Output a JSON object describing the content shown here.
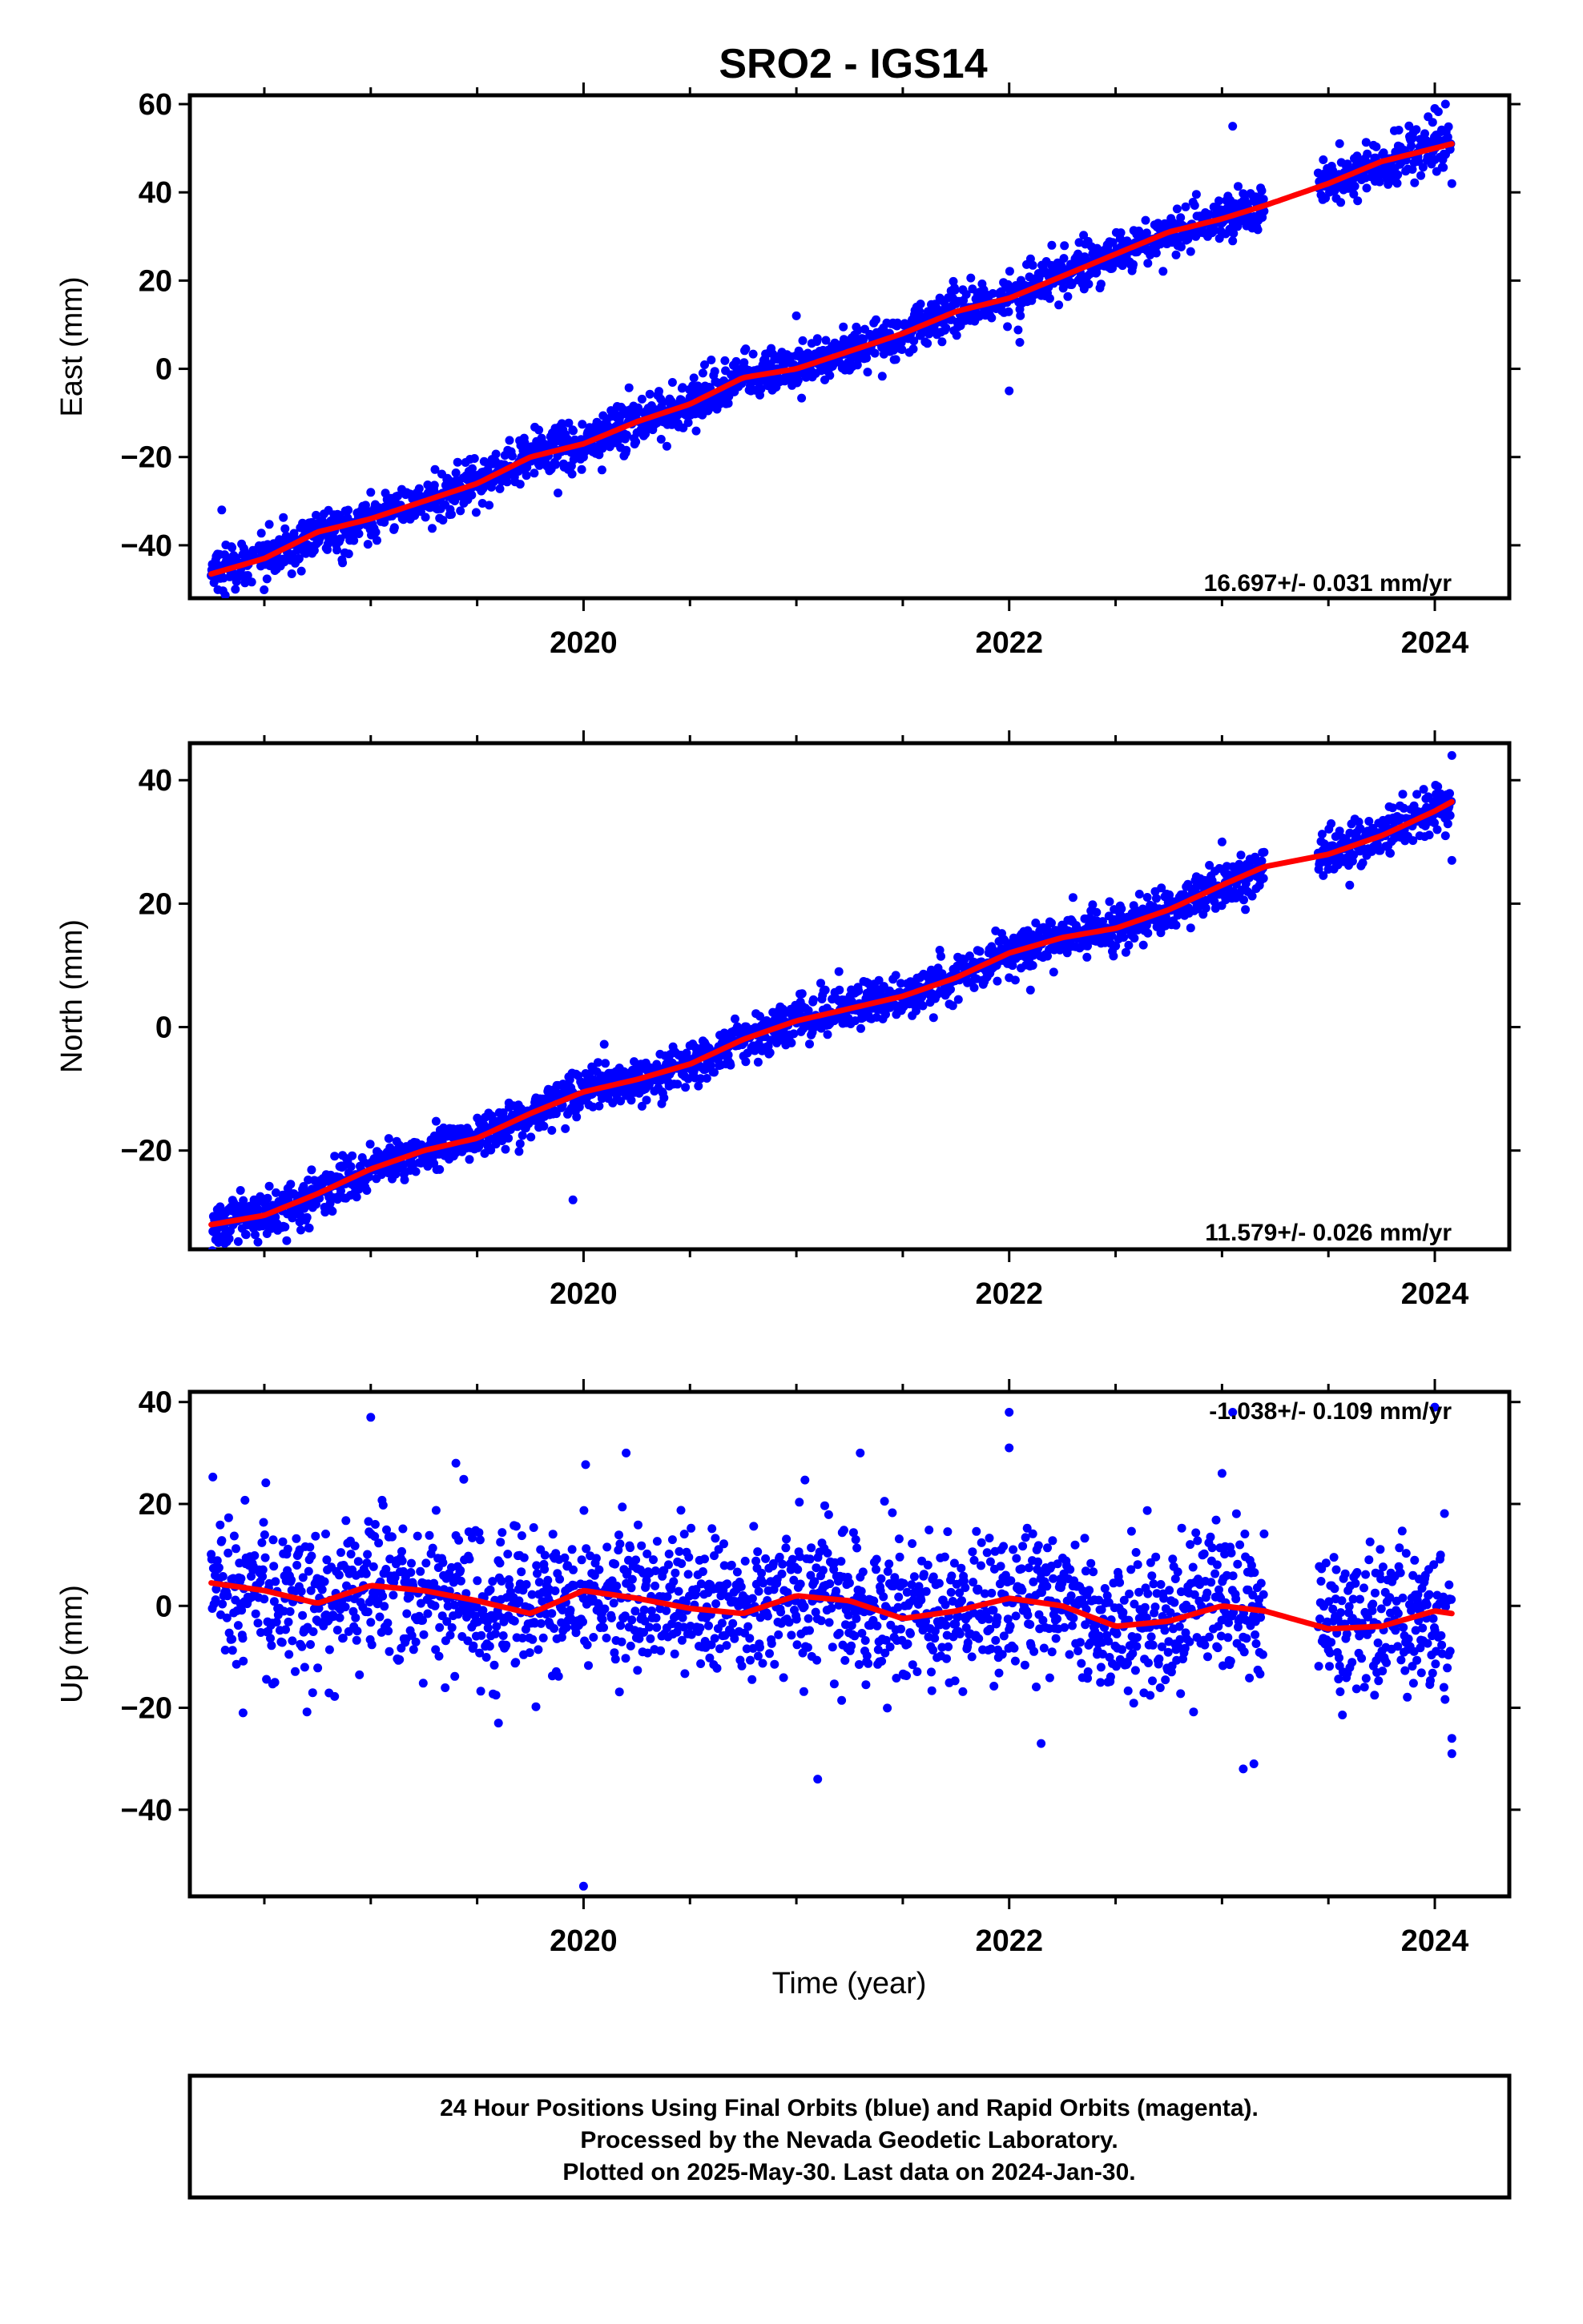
{
  "chart_data": {
    "type": "scatter",
    "title": "SRO2 - IGS14",
    "xlabel": "Time (year)",
    "xlim": [
      2018.15,
      2024.35
    ],
    "xticks": [
      2020,
      2022,
      2024
    ],
    "x_minor_step": 0.5,
    "colors": {
      "points": "#0000ff",
      "fit": "#ff0000",
      "axes": "#000000"
    },
    "panels": [
      {
        "ylabel": "East (mm)",
        "ylim": [
          -52,
          62
        ],
        "yticks": [
          -40,
          -20,
          0,
          20,
          40,
          60
        ],
        "rate_text": "16.697+/- 0.031 mm/yr",
        "rate_position": "bottom-right",
        "scatter_sd": 2.6,
        "fit": {
          "x": [
            2018.25,
            2018.5,
            2018.75,
            2019.0,
            2019.25,
            2019.5,
            2019.75,
            2020.0,
            2020.25,
            2020.5,
            2020.75,
            2021.0,
            2021.25,
            2021.5,
            2021.75,
            2022.0,
            2022.25,
            2022.5,
            2022.75,
            2023.0,
            2023.2,
            2023.5,
            2023.75,
            2024.0,
            2024.08
          ],
          "y": [
            -46.5,
            -43,
            -37,
            -34,
            -30,
            -26,
            -20,
            -17,
            -12,
            -8,
            -2,
            0,
            4,
            8,
            13,
            16,
            21,
            26,
            31,
            34,
            37,
            42,
            47,
            50,
            51
          ]
        },
        "outliers": [
          [
            2018.3,
            -32
          ],
          [
            2018.28,
            -42
          ],
          [
            2019.0,
            -28
          ],
          [
            2020.0,
            -20
          ],
          [
            2020.6,
            2
          ],
          [
            2021.0,
            12
          ],
          [
            2022.05,
            6
          ],
          [
            2022.0,
            -5
          ],
          [
            2022.2,
            28
          ],
          [
            2023.05,
            55
          ],
          [
            2023.05,
            29
          ],
          [
            2023.8,
            43
          ],
          [
            2024.0,
            59
          ],
          [
            2024.08,
            42
          ],
          [
            2024.05,
            60
          ]
        ]
      },
      {
        "ylabel": "North (mm)",
        "ylim": [
          -36,
          46
        ],
        "yticks": [
          -20,
          0,
          20,
          40
        ],
        "rate_text": "11.579+/- 0.026 mm/yr",
        "rate_position": "bottom-right",
        "scatter_sd": 1.8,
        "fit": {
          "x": [
            2018.25,
            2018.5,
            2018.75,
            2019.0,
            2019.25,
            2019.5,
            2019.75,
            2020.0,
            2020.25,
            2020.5,
            2020.75,
            2021.0,
            2021.25,
            2021.5,
            2021.75,
            2022.0,
            2022.25,
            2022.5,
            2022.75,
            2023.0,
            2023.2,
            2023.5,
            2023.75,
            2024.0,
            2024.08
          ],
          "y": [
            -32,
            -30.5,
            -27,
            -23,
            -20,
            -18,
            -14,
            -10.5,
            -8.5,
            -6,
            -2,
            1,
            3,
            5,
            8,
            12,
            14.5,
            16,
            19,
            23,
            26,
            28,
            31,
            35,
            36.5
          ]
        },
        "outliers": [
          [
            2019.95,
            -28
          ],
          [
            2019.65,
            -13
          ],
          [
            2020.05,
            -7
          ],
          [
            2020.4,
            -5
          ],
          [
            2021.2,
            9
          ],
          [
            2022.0,
            8
          ],
          [
            2022.1,
            6
          ],
          [
            2022.3,
            21
          ],
          [
            2023.6,
            23
          ],
          [
            2024.08,
            44
          ],
          [
            2024.08,
            27
          ],
          [
            2024.05,
            31
          ],
          [
            2023.0,
            30
          ]
        ]
      },
      {
        "ylabel": "Up (mm)",
        "ylim": [
          -57,
          42
        ],
        "yticks": [
          -40,
          -20,
          0,
          20,
          40
        ],
        "rate_text": "-1.038+/- 0.109 mm/yr",
        "rate_position": "top-right",
        "scatter_sd": 7.0,
        "fit": {
          "x": [
            2018.25,
            2018.5,
            2018.75,
            2019.0,
            2019.25,
            2019.5,
            2019.75,
            2020.0,
            2020.25,
            2020.5,
            2020.75,
            2021.0,
            2021.25,
            2021.5,
            2021.75,
            2022.0,
            2022.25,
            2022.5,
            2022.75,
            2023.0,
            2023.2,
            2023.5,
            2023.75,
            2024.0,
            2024.08
          ],
          "y": [
            4.5,
            3,
            0.5,
            4,
            3,
            1,
            -1.5,
            3,
            1.5,
            -0.5,
            -1.5,
            2,
            1,
            -2.5,
            -1,
            1.5,
            0,
            -4,
            -3,
            0,
            -1,
            -4.5,
            -4,
            -1,
            -1.5
          ]
        },
        "outliers": [
          [
            2019.0,
            37
          ],
          [
            2020.0,
            -55
          ],
          [
            2021.1,
            -34
          ],
          [
            2022.0,
            38
          ],
          [
            2022.0,
            31
          ],
          [
            2023.0,
            26
          ],
          [
            2023.1,
            -32
          ],
          [
            2023.15,
            -31
          ],
          [
            2023.05,
            38
          ],
          [
            2024.0,
            39
          ],
          [
            2024.08,
            -26
          ],
          [
            2024.08,
            -29
          ],
          [
            2019.4,
            28
          ],
          [
            2020.2,
            30
          ],
          [
            2021.3,
            30
          ],
          [
            2018.4,
            -21
          ],
          [
            2019.6,
            -23
          ],
          [
            2022.15,
            -27
          ]
        ]
      }
    ]
  },
  "caption_lines": [
    "24 Hour Positions Using Final Orbits (blue) and Rapid Orbits (magenta).",
    "Processed by the Nevada Geodetic Laboratory.",
    "Plotted on 2025-May-30. Last data on 2024-Jan-30."
  ]
}
